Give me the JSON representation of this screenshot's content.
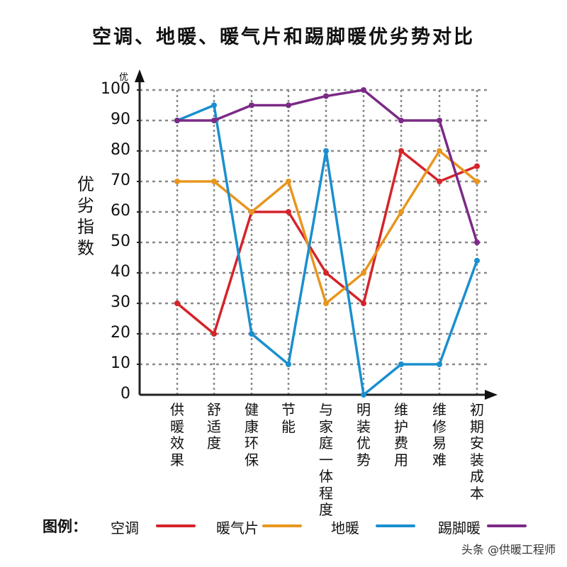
{
  "title": "空调、地暖、暖气片和踢脚暖优劣势对比",
  "y_axis": {
    "label": "优劣指数",
    "top_label": "优",
    "ticks": [
      "100",
      "90",
      "80",
      "70",
      "60",
      "50",
      "40",
      "30",
      "20",
      "10",
      "0"
    ]
  },
  "x_axis": {
    "categories": [
      "供暖效果",
      "舒适度",
      "健康环保",
      "节能",
      "与家庭一体程度",
      "明装优势",
      "维护费用",
      "维修易难",
      "初期安装成本"
    ]
  },
  "legend": {
    "heading": "图例：",
    "items": [
      {
        "label": "空调",
        "color": "#d4242a"
      },
      {
        "label": "暖气片",
        "color": "#e8961e"
      },
      {
        "label": "地暖",
        "color": "#1a8fcf"
      },
      {
        "label": "踢脚暖",
        "color": "#7b2a86"
      }
    ]
  },
  "watermark": "头条 @供暖工程师",
  "chart_data": {
    "type": "line",
    "title": "空调、地暖、暖气片和踢脚暖优劣势对比",
    "xlabel": "",
    "ylabel": "优劣指数",
    "ylim": [
      0,
      100
    ],
    "grid": true,
    "legend_position": "bottom",
    "categories": [
      "供暖效果",
      "舒适度",
      "健康环保",
      "节能",
      "与家庭一体程度",
      "明装优势",
      "维护费用",
      "维修易难",
      "初期安装成本"
    ],
    "series": [
      {
        "name": "空调",
        "color": "#d4242a",
        "values": [
          30,
          20,
          60,
          60,
          40,
          30,
          80,
          70,
          75
        ]
      },
      {
        "name": "暖气片",
        "color": "#e8961e",
        "values": [
          70,
          70,
          60,
          70,
          30,
          40,
          60,
          80,
          70
        ]
      },
      {
        "name": "地暖",
        "color": "#1a8fcf",
        "values": [
          90,
          95,
          20,
          10,
          80,
          0,
          10,
          10,
          44
        ]
      },
      {
        "name": "踢脚暖",
        "color": "#7b2a86",
        "values": [
          90,
          90,
          95,
          95,
          98,
          100,
          90,
          90,
          50
        ]
      }
    ]
  }
}
